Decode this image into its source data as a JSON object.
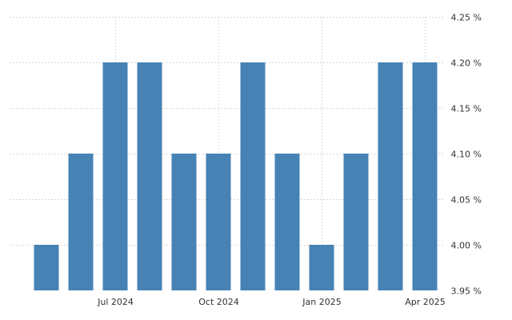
{
  "chart_data": {
    "type": "bar",
    "categories": [
      "2024-05",
      "2024-06",
      "2024-07",
      "2024-08",
      "2024-09",
      "2024-10",
      "2024-11",
      "2024-12",
      "2025-01",
      "2025-02",
      "2025-03",
      "2025-04"
    ],
    "values": [
      4.0,
      4.1,
      4.2,
      4.2,
      4.1,
      4.1,
      4.2,
      4.1,
      4.0,
      4.1,
      4.2,
      4.2
    ],
    "x_tick_labels": [
      {
        "category": "2024-07",
        "label": "Jul 2024"
      },
      {
        "category": "2024-10",
        "label": "Oct 2024"
      },
      {
        "category": "2025-01",
        "label": "Jan 2025"
      },
      {
        "category": "2025-04",
        "label": "Apr 2025"
      }
    ],
    "y_ticks": [
      3.95,
      4.0,
      4.05,
      4.1,
      4.15,
      4.2,
      4.25
    ],
    "y_tick_labels": [
      "3.95 %",
      "4.00 %",
      "4.05 %",
      "4.10 %",
      "4.15 %",
      "4.20 %",
      "4.25 %"
    ],
    "ylim": [
      3.95,
      4.25
    ],
    "y_axis_position": "right",
    "grid": true,
    "bar_color": "#4682b4",
    "title": "",
    "xlabel": "",
    "ylabel": ""
  }
}
